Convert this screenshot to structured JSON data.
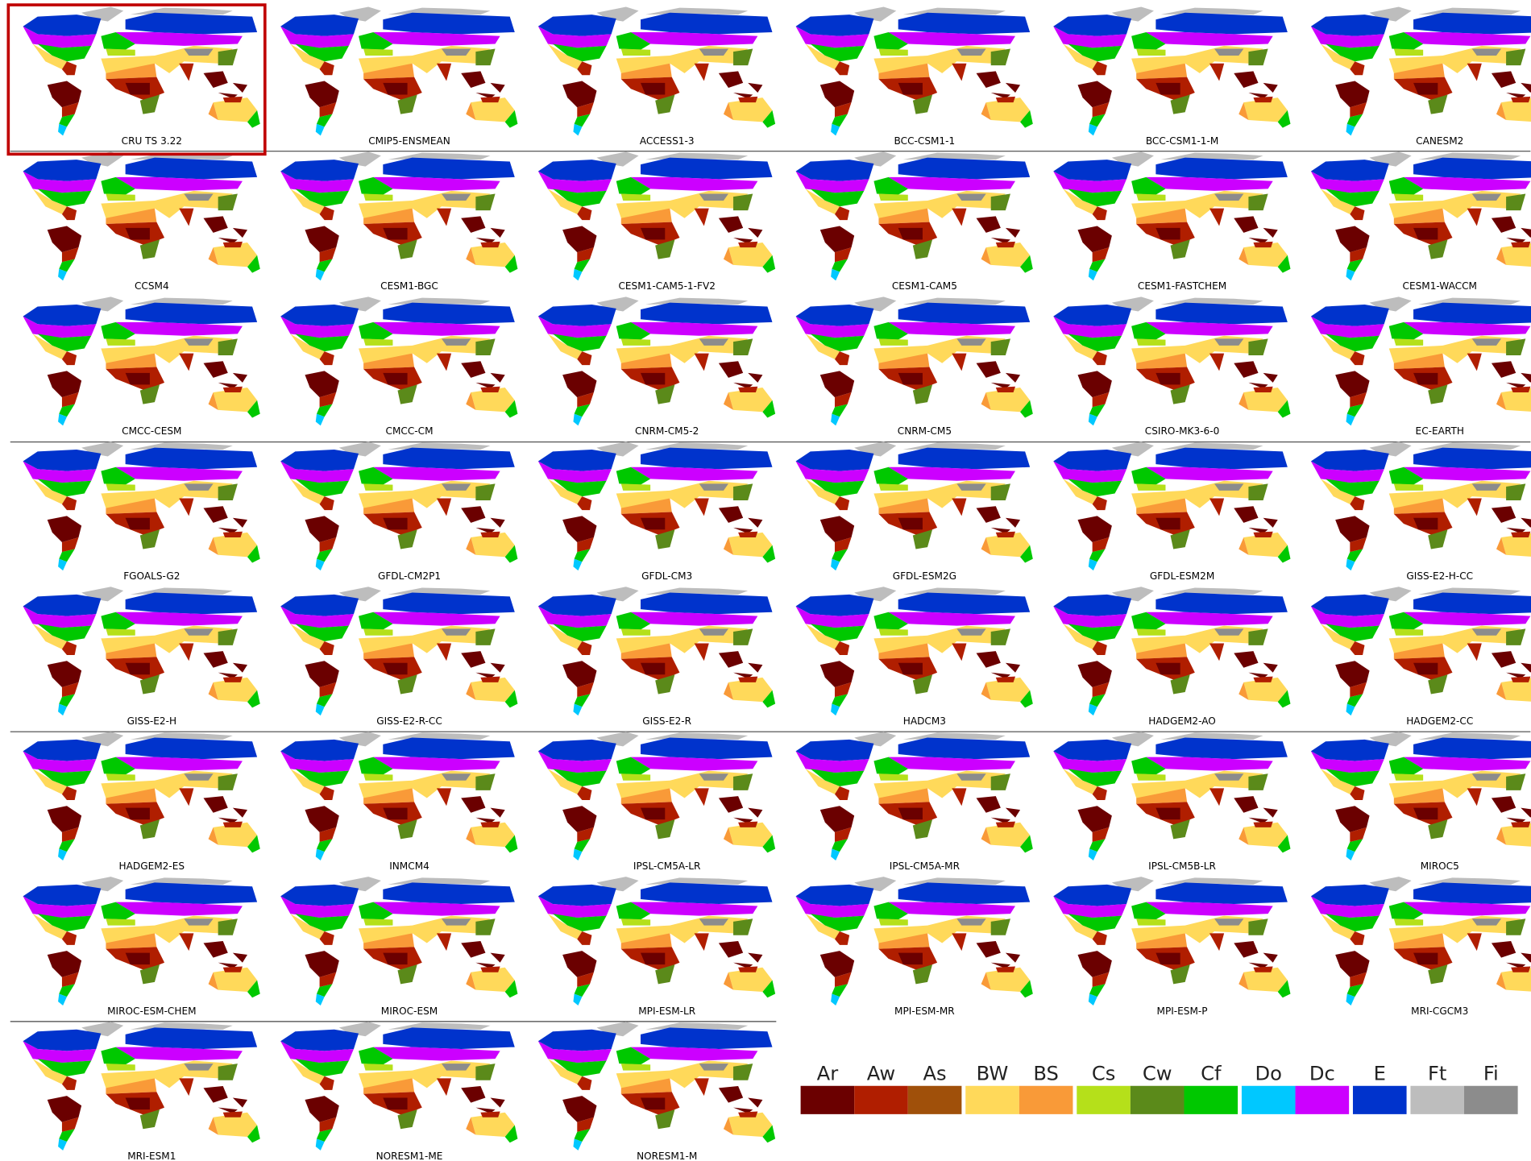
{
  "panels": [
    {
      "label": "CRU TS 3.22"
    },
    {
      "label": "CMIP5-ENSMEAN"
    },
    {
      "label": "ACCESS1-3"
    },
    {
      "label": "BCC-CSM1-1"
    },
    {
      "label": "BCC-CSM1-1-M"
    },
    {
      "label": "CANESM2"
    },
    {
      "label": "CCSM4"
    },
    {
      "label": "CESM1-BGC"
    },
    {
      "label": "CESM1-CAM5-1-FV2"
    },
    {
      "label": "CESM1-CAM5"
    },
    {
      "label": "CESM1-FASTCHEM"
    },
    {
      "label": "CESM1-WACCM"
    },
    {
      "label": "CMCC-CESM"
    },
    {
      "label": "CMCC-CM"
    },
    {
      "label": "CNRM-CM5-2"
    },
    {
      "label": "CNRM-CM5"
    },
    {
      "label": "CSIRO-MK3-6-0"
    },
    {
      "label": "EC-EARTH"
    },
    {
      "label": "FGOALS-G2"
    },
    {
      "label": "GFDL-CM2P1"
    },
    {
      "label": "GFDL-CM3"
    },
    {
      "label": "GFDL-ESM2G"
    },
    {
      "label": "GFDL-ESM2M"
    },
    {
      "label": "GISS-E2-H-CC"
    },
    {
      "label": "GISS-E2-H"
    },
    {
      "label": "GISS-E2-R-CC"
    },
    {
      "label": "GISS-E2-R"
    },
    {
      "label": "HADCM3"
    },
    {
      "label": "HADGEM2-AO"
    },
    {
      "label": "HADGEM2-CC"
    },
    {
      "label": "HADGEM2-ES"
    },
    {
      "label": "INMCM4"
    },
    {
      "label": "IPSL-CM5A-LR"
    },
    {
      "label": "IPSL-CM5A-MR"
    },
    {
      "label": "IPSL-CM5B-LR"
    },
    {
      "label": "MIROC5"
    },
    {
      "label": "MIROC-ESM-CHEM"
    },
    {
      "label": "MIROC-ESM"
    },
    {
      "label": "MPI-ESM-LR"
    },
    {
      "label": "MPI-ESM-MR"
    },
    {
      "label": "MPI-ESM-P"
    },
    {
      "label": "MRI-CGCM3"
    },
    {
      "label": "MRI-ESM1"
    },
    {
      "label": "NORESM1-ME"
    },
    {
      "label": "NORESM1-M"
    }
  ],
  "legend": {
    "groups": [
      [
        {
          "label": "Ar",
          "color": "#6b0000"
        },
        {
          "label": "Aw",
          "color": "#b01e00"
        },
        {
          "label": "As",
          "color": "#a0500a"
        }
      ],
      [
        {
          "label": "BW",
          "color": "#ffd95a"
        },
        {
          "label": "BS",
          "color": "#f99a38"
        }
      ],
      [
        {
          "label": "Cs",
          "color": "#b5e01a"
        },
        {
          "label": "Cw",
          "color": "#5b8a1a"
        },
        {
          "label": "Cf",
          "color": "#00c800"
        }
      ],
      [
        {
          "label": "Do",
          "color": "#00c8ff"
        },
        {
          "label": "Dc",
          "color": "#cc00ff"
        }
      ],
      [
        {
          "label": "E",
          "color": "#0033cc"
        }
      ],
      [
        {
          "label": "Ft",
          "color": "#bdbdbd"
        },
        {
          "label": "Fi",
          "color": "#8c8c8c"
        }
      ]
    ]
  }
}
